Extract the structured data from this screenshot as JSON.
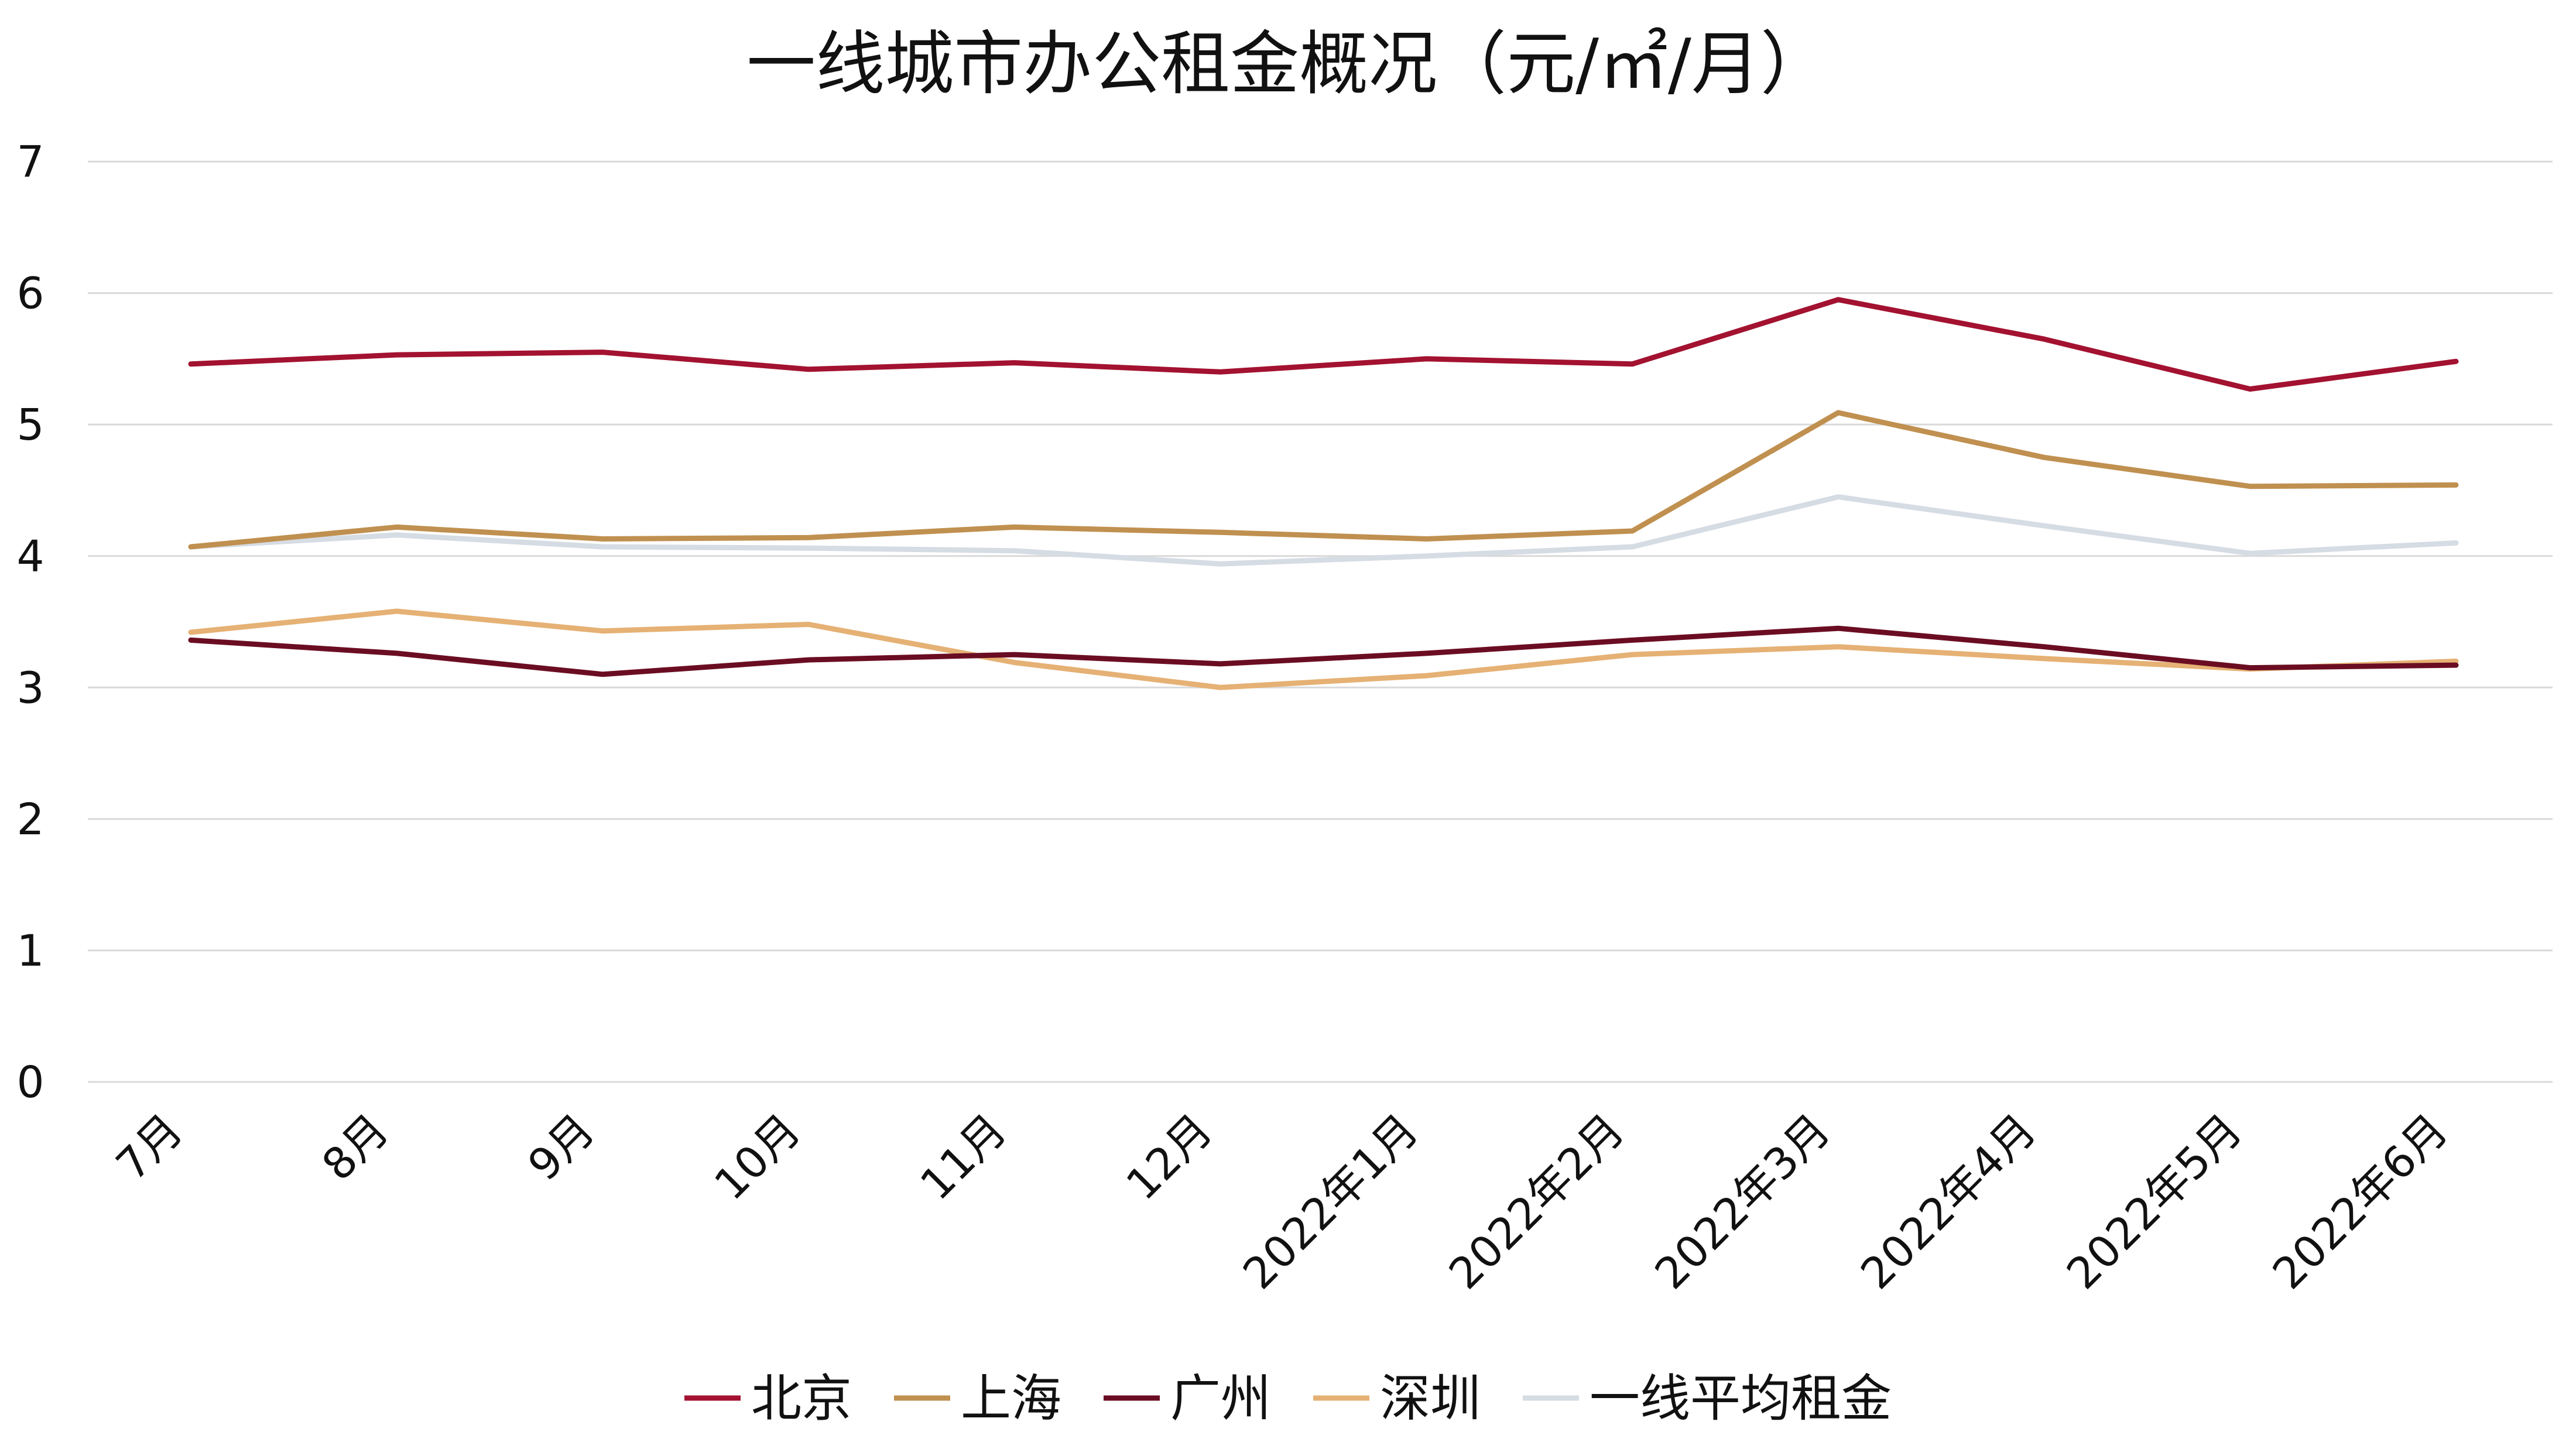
{
  "chart_data": {
    "type": "line",
    "title": "一线城市办公租金概况（元/㎡/月）",
    "xlabel": "",
    "ylabel": "",
    "ylim": [
      0,
      7
    ],
    "yticks": [
      "0",
      "1",
      "2",
      "3",
      "4",
      "5",
      "6",
      "7"
    ],
    "grid": true,
    "legend_position": "bottom",
    "categories": [
      "7月",
      "8月",
      "9月",
      "10月",
      "11月",
      "12月",
      "2022年1月",
      "2022年2月",
      "2022年3月",
      "2022年4月",
      "2022年5月",
      "2022年6月"
    ],
    "series": [
      {
        "name": "一线平均租金",
        "color": "#d6dce4",
        "values": [
          4.07,
          4.16,
          4.07,
          4.06,
          4.04,
          3.94,
          4.0,
          4.07,
          4.45,
          4.23,
          4.02,
          4.1
        ]
      },
      {
        "name": "深圳",
        "color": "#e5b174",
        "values": [
          3.42,
          3.58,
          3.43,
          3.48,
          3.19,
          3.0,
          3.09,
          3.25,
          3.31,
          3.22,
          3.14,
          3.2
        ]
      },
      {
        "name": "广州",
        "color": "#6b0d22",
        "values": [
          3.36,
          3.26,
          3.1,
          3.21,
          3.25,
          3.18,
          3.26,
          3.36,
          3.45,
          3.31,
          3.15,
          3.17
        ]
      },
      {
        "name": "上海",
        "color": "#c09050",
        "values": [
          4.07,
          4.22,
          4.13,
          4.14,
          4.22,
          4.18,
          4.13,
          4.19,
          5.09,
          4.75,
          4.53,
          4.54
        ]
      },
      {
        "name": "北京",
        "color": "#a31230",
        "values": [
          5.46,
          5.53,
          5.55,
          5.42,
          5.47,
          5.4,
          5.5,
          5.46,
          5.95,
          5.65,
          5.27,
          5.48
        ]
      }
    ],
    "legend": [
      "北京",
      "上海",
      "广州",
      "深圳",
      "一线平均租金"
    ]
  }
}
